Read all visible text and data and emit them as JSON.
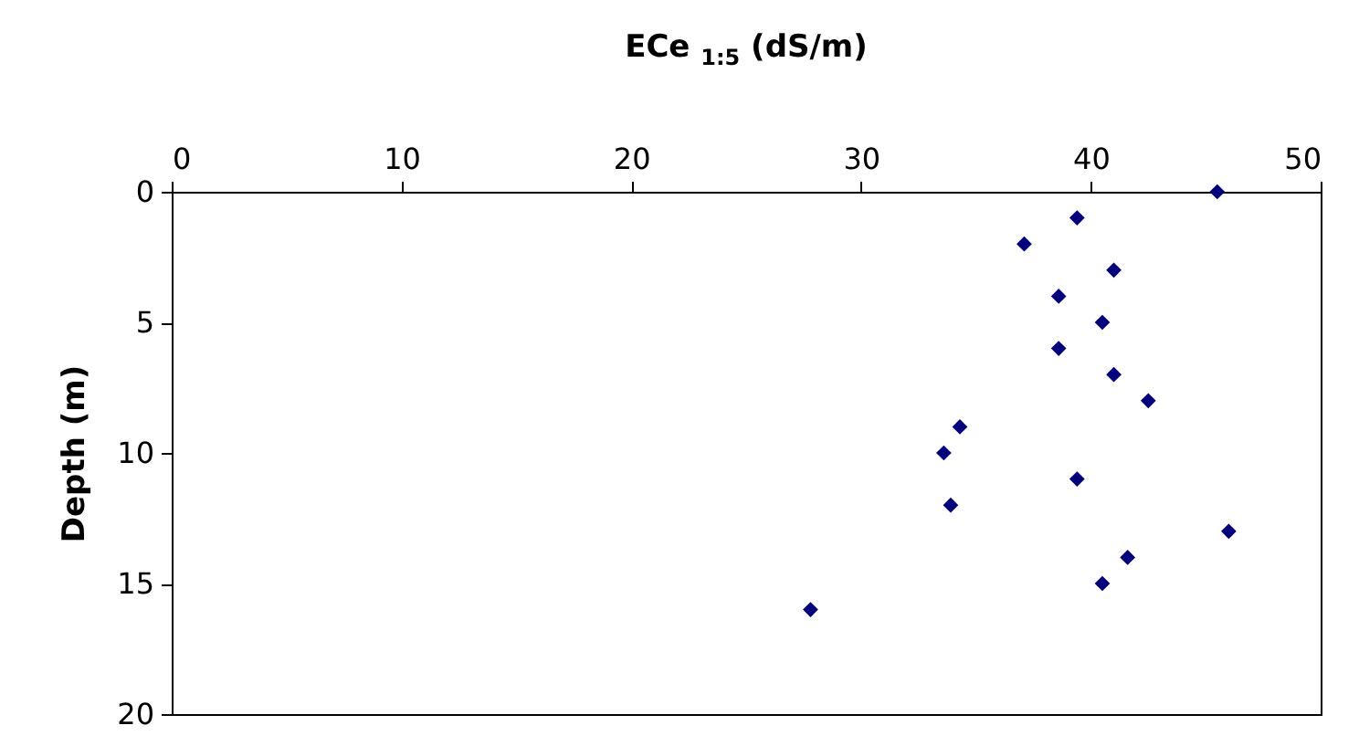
{
  "chart_data": {
    "type": "scatter",
    "xlabel": "ECe $_{1:5}$ (dS/m)",
    "ylabel": "Depth (m)",
    "x": [
      45.5,
      39.4,
      37.1,
      41.0,
      38.6,
      40.5,
      38.6,
      41.0,
      42.5,
      34.3,
      33.6,
      39.4,
      33.9,
      46.0,
      41.6,
      40.5,
      27.8
    ],
    "series": [
      {
        "color": "#000080",
        "values": [
          0,
          1,
          2,
          3,
          4,
          5,
          6,
          7,
          8,
          9,
          10,
          11,
          12,
          13,
          14,
          15,
          16
        ]
      }
    ],
    "xlim": [
      0,
      50
    ],
    "xticks": [
      0,
      10,
      20,
      30,
      40,
      50
    ],
    "ylim": [
      20,
      0
    ],
    "yticks": [
      0,
      5,
      10,
      15,
      20
    ],
    "marker": "diamond",
    "grid": false,
    "legend": false
  }
}
